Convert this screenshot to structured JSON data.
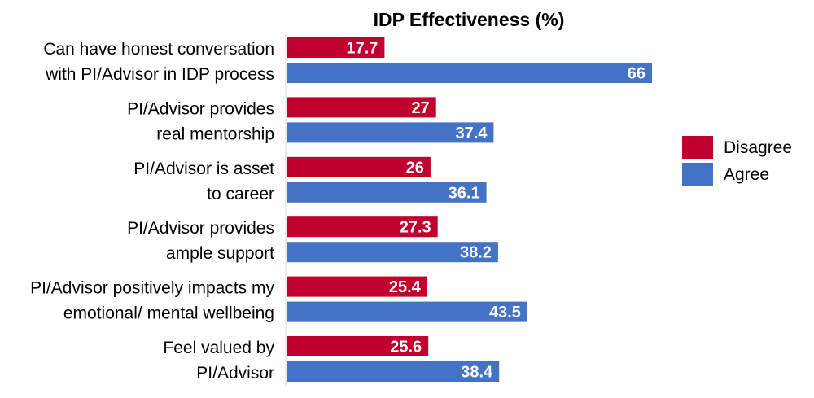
{
  "chart_data": {
    "type": "bar",
    "orientation": "horizontal",
    "title": "IDP Effectiveness (%)",
    "categories": [
      [
        "Can have honest conversation",
        "with PI/Advisor in IDP process"
      ],
      [
        "PI/Advisor provides",
        "real mentorship"
      ],
      [
        "PI/Advisor is asset",
        "to career"
      ],
      [
        "PI/Advisor provides",
        "ample support"
      ],
      [
        "PI/Advisor positively impacts my",
        "emotional/ mental wellbeing"
      ],
      [
        "Feel valued by",
        "PI/Advisor"
      ]
    ],
    "series": [
      {
        "name": "Disagree",
        "color": "#C0002F",
        "values": [
          17.7,
          27,
          26,
          27.3,
          25.4,
          25.6
        ],
        "labels": [
          "17.7",
          "27",
          "26",
          "27.3",
          "25.4",
          "25.6"
        ]
      },
      {
        "name": "Agree",
        "color": "#4472C4",
        "values": [
          66,
          37.4,
          36.1,
          38.2,
          43.5,
          38.4
        ],
        "labels": [
          "66",
          "37.4",
          "36.1",
          "38.2",
          "43.5",
          "38.4"
        ]
      }
    ],
    "xlim": [
      0,
      66
    ],
    "grid": false,
    "data_labels": "inside-end",
    "legend_position": "right"
  }
}
